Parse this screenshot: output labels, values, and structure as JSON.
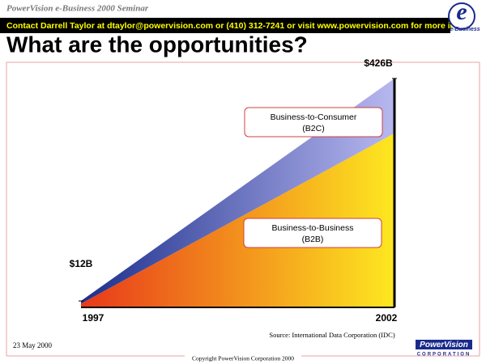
{
  "header": {
    "seminar": "PowerVision e-Business 2000 Seminar",
    "banner": "Contact Darrell Taylor at dtaylor@powervision.com or (410) 312-7241 or visit www.powervision.com for more info",
    "logo": "e-Business"
  },
  "chart_data": {
    "type": "area",
    "title": "What are the opportunities?",
    "x": [
      "1997",
      "2002"
    ],
    "series": [
      {
        "name": "Business-to-Business",
        "abbr": "(B2B)",
        "color": "#e8381a",
        "color_end": "#fde820",
        "values": [
          7,
          324
        ]
      },
      {
        "name": "Business-to-Consumer",
        "abbr": "(B2C)",
        "color": "#1c2f8c",
        "color_end": "#b8b8f0",
        "values": [
          5,
          102
        ]
      }
    ],
    "totals": {
      "values": [
        12,
        426
      ],
      "value_labels": [
        "$12B",
        "$426B"
      ]
    },
    "ylim": [
      0,
      426
    ],
    "source": "Source: International Data Corporation (IDC)"
  },
  "footer": {
    "date": "23 May 2000",
    "copyright": "Copyright PowerVision Corporation 2000",
    "brand": "PowerVision",
    "brand_sub": "CORPORATION"
  }
}
